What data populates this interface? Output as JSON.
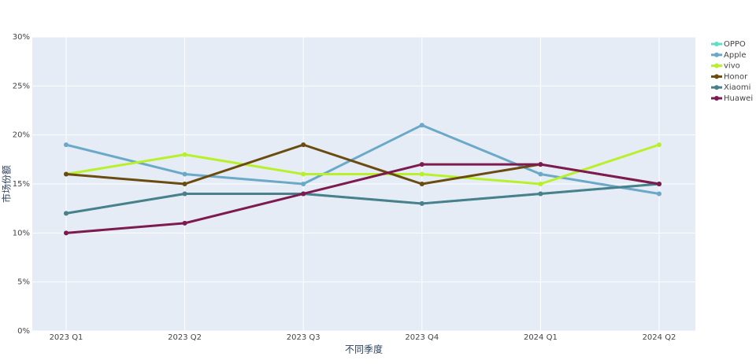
{
  "chart_data": {
    "type": "line",
    "x_label": "不同季度",
    "y_label": "市场份额",
    "categories": [
      "2023 Q1",
      "2023 Q2",
      "2023 Q3",
      "2023 Q4",
      "2024 Q1",
      "2024 Q2"
    ],
    "series": [
      {
        "name": "OPPO",
        "color": "#5fe0c4",
        "values": [
          12,
          14,
          14,
          13,
          14,
          15
        ]
      },
      {
        "name": "Apple",
        "color": "#6aa9c8",
        "values": [
          19,
          16,
          15,
          21,
          16,
          14
        ]
      },
      {
        "name": "vivo",
        "color": "#b8f02a",
        "values": [
          16,
          18,
          16,
          16,
          15,
          19
        ]
      },
      {
        "name": "Honor",
        "color": "#6b4c10",
        "values": [
          16,
          15,
          19,
          15,
          17,
          15
        ]
      },
      {
        "name": "Xiaomi",
        "color": "#4a7f8c",
        "values": [
          12,
          14,
          14,
          13,
          14,
          15
        ]
      },
      {
        "name": "Huawei",
        "color": "#7d1a4f",
        "values": [
          10,
          11,
          14,
          17,
          17,
          15
        ]
      }
    ],
    "ylim": [
      0,
      30
    ],
    "yticks": [
      {
        "value": 0,
        "label": "0%"
      },
      {
        "value": 5,
        "label": "5%"
      },
      {
        "value": 10,
        "label": "10%"
      },
      {
        "value": 15,
        "label": "15%"
      },
      {
        "value": 20,
        "label": "20%"
      },
      {
        "value": 25,
        "label": "25%"
      },
      {
        "value": 30,
        "label": "30%"
      }
    ],
    "grid": true
  }
}
